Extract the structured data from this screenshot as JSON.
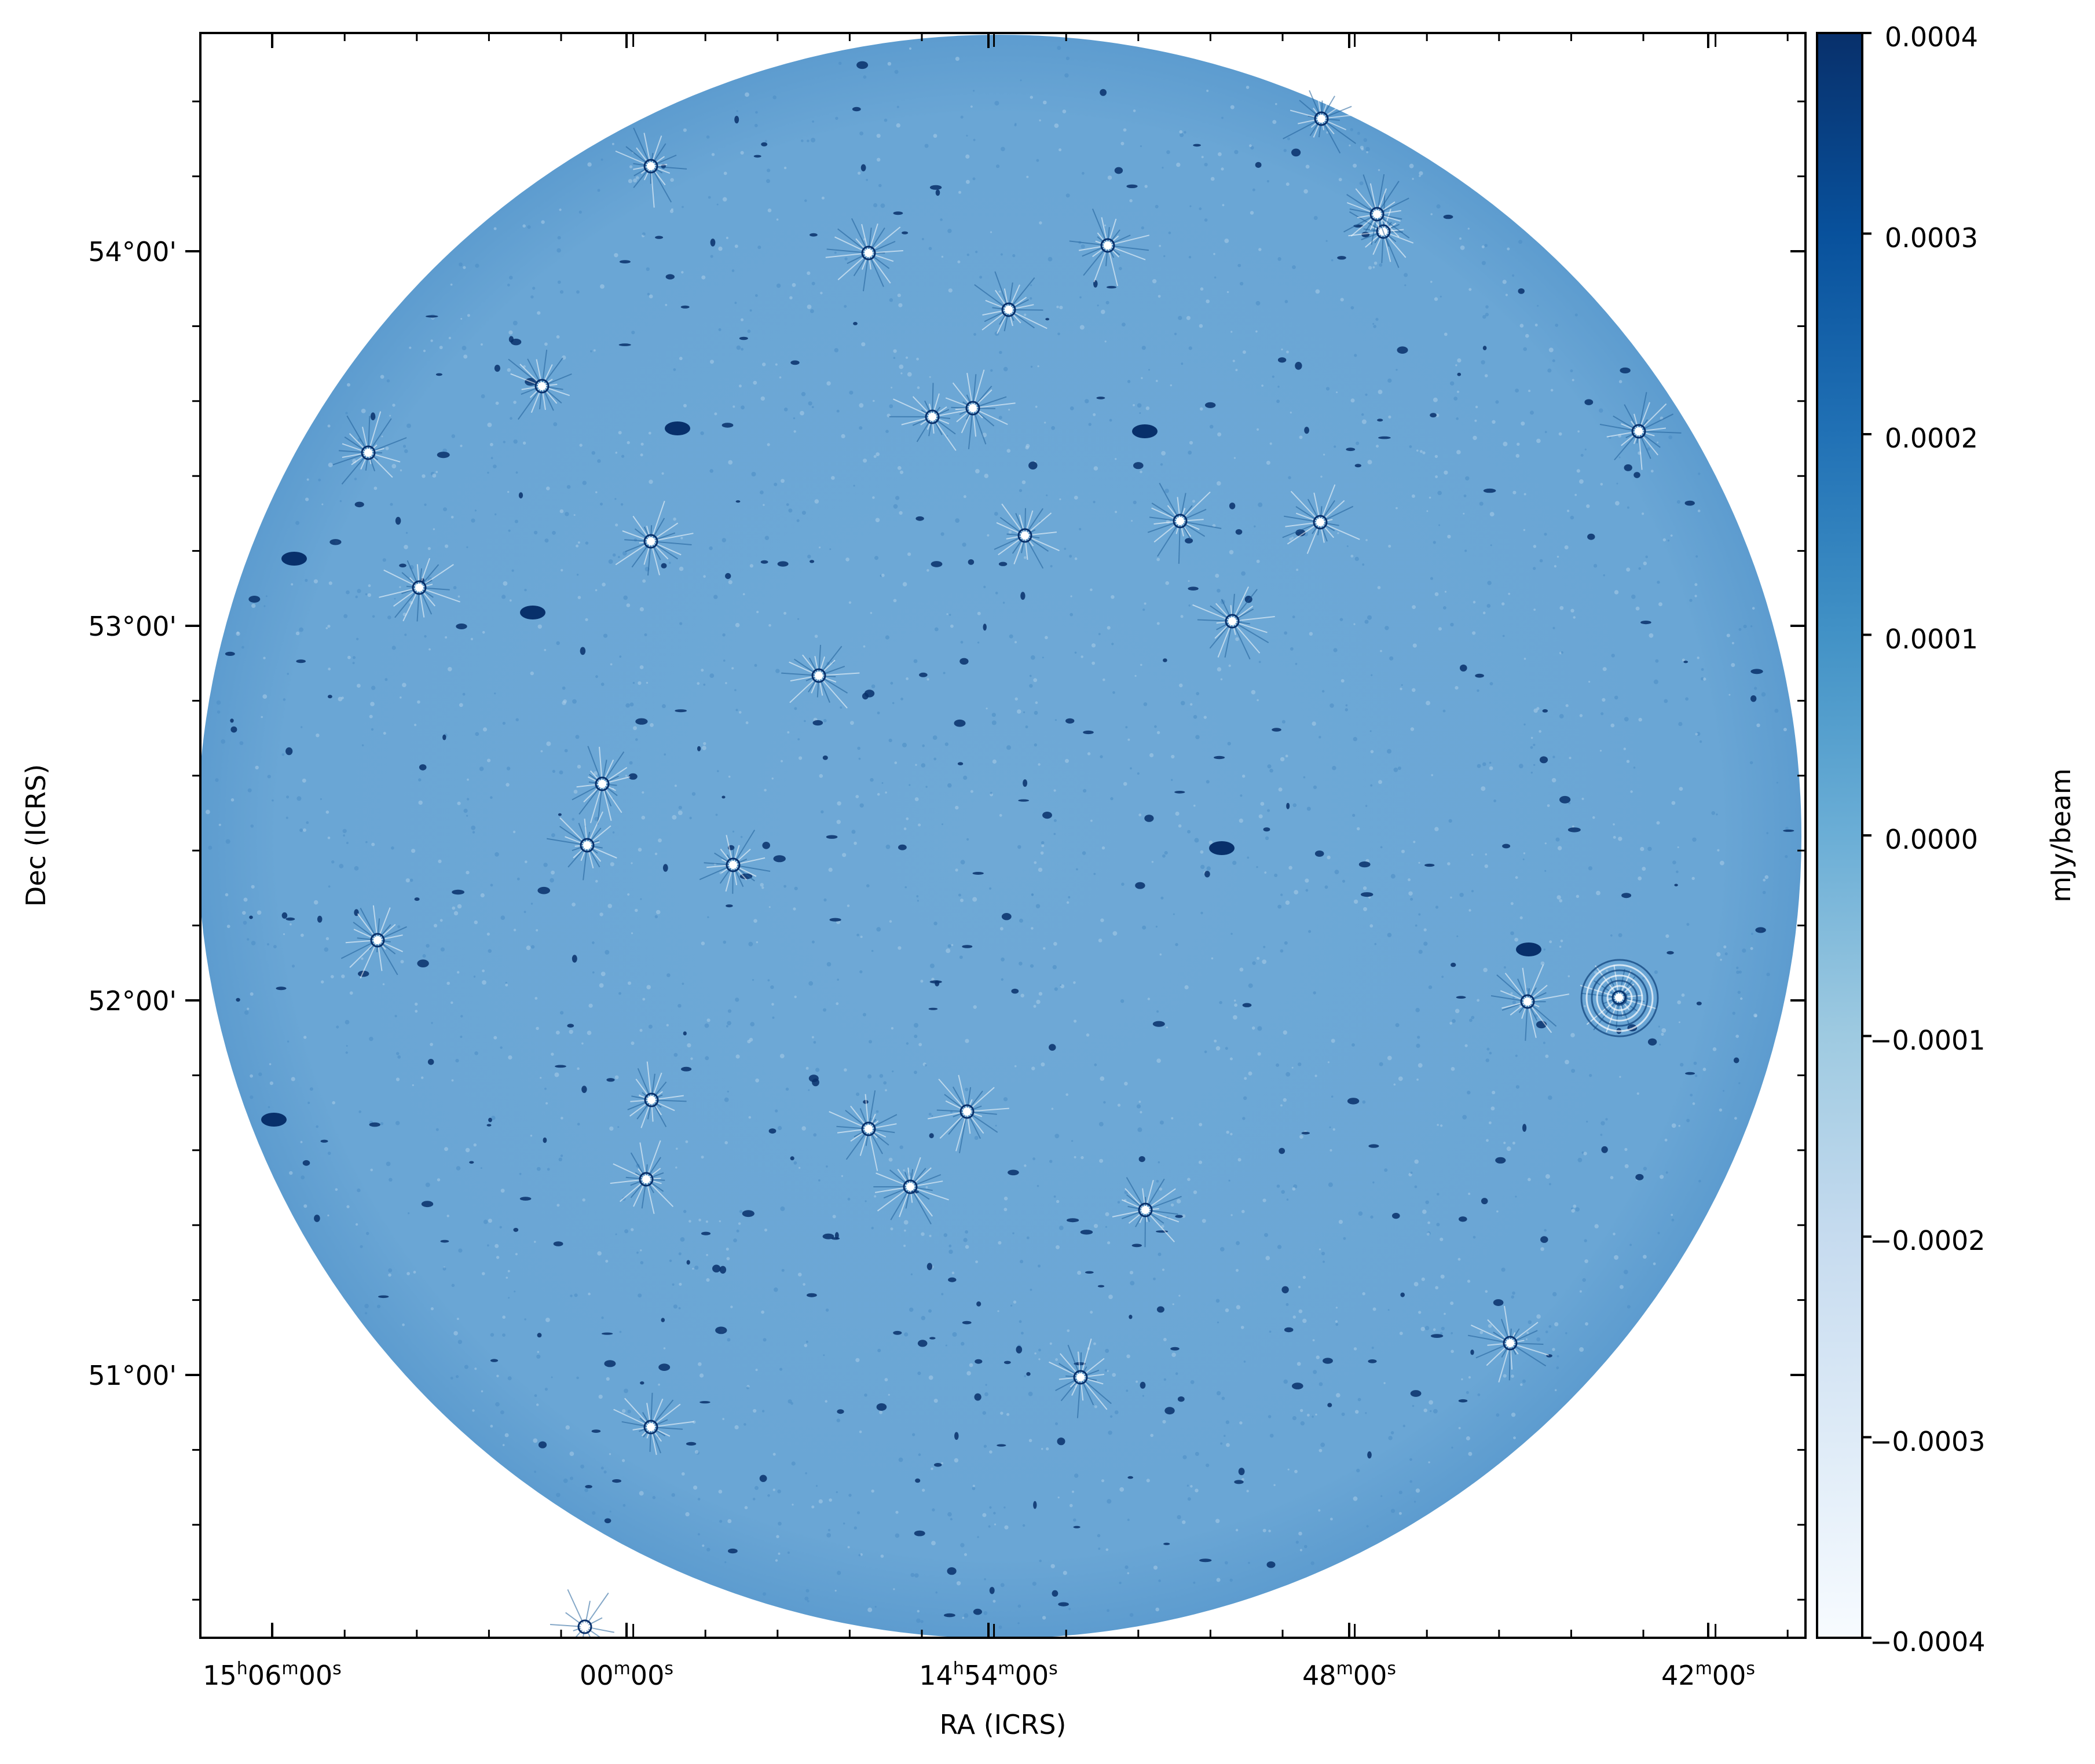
{
  "chart_data": {
    "type": "heatmap",
    "description_type": "radio sky image (circular primary-beam field)",
    "xlabel": "RA (ICRS)",
    "ylabel": "Dec (ICRS)",
    "x_ticks": [
      {
        "h": "15",
        "m": "06",
        "s": "00",
        "kind": "hms"
      },
      {
        "m": "00",
        "s": "00",
        "kind": "ms"
      },
      {
        "h": "14",
        "m": "54",
        "s": "00",
        "kind": "hms"
      },
      {
        "m": "48",
        "s": "00",
        "kind": "ms"
      },
      {
        "m": "42",
        "s": "00",
        "kind": "ms"
      }
    ],
    "y_ticks": [
      "51°00'",
      "52°00'",
      "53°00'",
      "54°00'"
    ],
    "colorbar": {
      "label": "mJy/beam",
      "cmap": "Blues",
      "ticks": [
        "0.0004",
        "0.0003",
        "0.0002",
        "0.0001",
        "0.0000",
        "−0.0001",
        "−0.0002",
        "−0.0003",
        "−0.0004"
      ],
      "range": [
        -0.0004,
        0.0004
      ]
    },
    "background_color": "#6fa8d6",
    "point_source_color": "#08306b"
  }
}
